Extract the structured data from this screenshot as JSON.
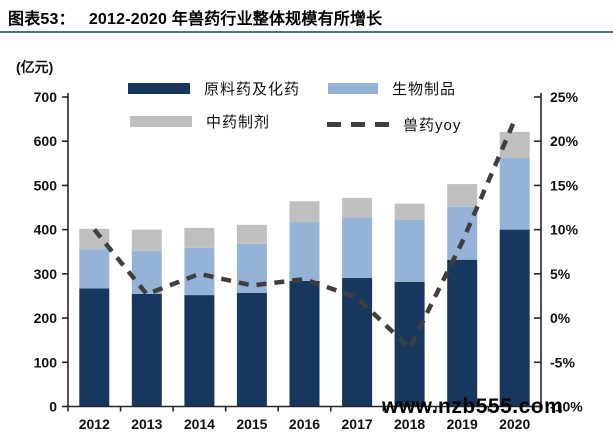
{
  "header": {
    "figure_label": "图表53：",
    "title": "2012-2020 年兽药行业整体规模有所增长"
  },
  "watermark": "www.nzb555.com",
  "chart_data": {
    "type": "bar",
    "subtype": "stacked-bar-with-line",
    "title": "2012-2020 年兽药行业整体规模有所增长",
    "categories": [
      "2012",
      "2013",
      "2014",
      "2015",
      "2016",
      "2017",
      "2018",
      "2019",
      "2020"
    ],
    "bar_series": [
      {
        "name": "原料药及化药",
        "color": "#17375E",
        "values": [
          267,
          255,
          252,
          257,
          284,
          291,
          282,
          332,
          400
        ]
      },
      {
        "name": "生物制品",
        "color": "#95B3D7",
        "values": [
          88,
          97,
          107,
          111,
          133,
          137,
          140,
          120,
          162
        ]
      },
      {
        "name": "中药制剂",
        "color": "#BFBFBF",
        "values": [
          47,
          48,
          45,
          43,
          47,
          44,
          37,
          51,
          59
        ]
      }
    ],
    "stack_totals": [
      402,
      400,
      404,
      411,
      464,
      472,
      459,
      503,
      621
    ],
    "line_series": {
      "name": "兽药yoy",
      "color": "#3F3F3F",
      "style": "dashed",
      "axis": "right",
      "values_percent": [
        10.0,
        2.7,
        5.0,
        3.7,
        4.4,
        2.3,
        -3.4,
        8.6,
        22.4
      ]
    },
    "left_axis": {
      "unit": "(亿元)",
      "min": 0,
      "max": 700,
      "ticks": [
        "0",
        "100",
        "200",
        "300",
        "400",
        "500",
        "600",
        "700"
      ]
    },
    "right_axis": {
      "min": -10,
      "max": 25,
      "ticks": [
        "-10%",
        "-5%",
        "0%",
        "5%",
        "10%",
        "15%",
        "20%",
        "25%"
      ]
    },
    "legend_position": "top",
    "grid": "off"
  }
}
